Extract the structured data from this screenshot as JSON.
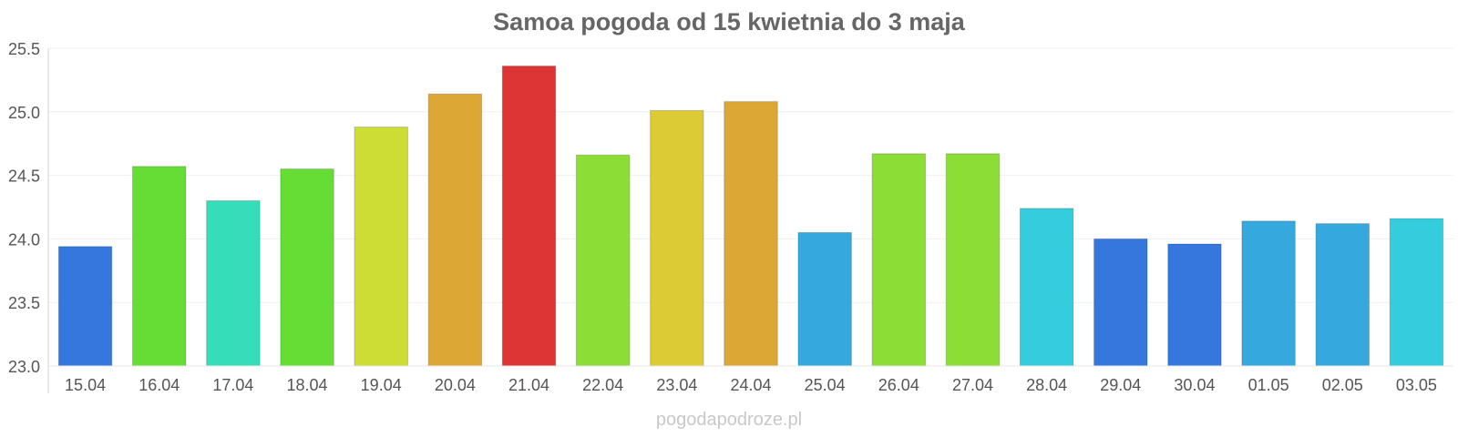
{
  "chart_data": {
    "type": "bar",
    "title": "Samoa pogoda od 15 kwietnia do 3 maja",
    "xlabel": "",
    "ylabel": "",
    "ylim": [
      23.0,
      25.5
    ],
    "yticks": [
      "23.0",
      "23.5",
      "24.0",
      "24.5",
      "25.0",
      "25.5"
    ],
    "grid": true,
    "legend": "none",
    "categories": [
      "15.04",
      "16.04",
      "17.04",
      "18.04",
      "19.04",
      "20.04",
      "21.04",
      "22.04",
      "23.04",
      "24.04",
      "25.04",
      "26.04",
      "27.04",
      "28.04",
      "29.04",
      "30.04",
      "01.05",
      "02.05",
      "03.05"
    ],
    "values": [
      23.94,
      24.57,
      24.3,
      24.55,
      24.88,
      25.14,
      25.36,
      24.66,
      25.01,
      25.08,
      24.05,
      24.67,
      24.67,
      24.24,
      24.0,
      23.96,
      24.14,
      24.12,
      24.16
    ],
    "colors": [
      "#3577dd",
      "#66dd35",
      "#35ddb8",
      "#66dd35",
      "#cedd35",
      "#dda735",
      "#dd3535",
      "#8cdd35",
      "#dccb35",
      "#dda735",
      "#35a8dd",
      "#8cdd35",
      "#8cdd35",
      "#35cddd",
      "#3577dd",
      "#3577dd",
      "#35a8dd",
      "#35a8dd",
      "#35cddd"
    ]
  },
  "watermark": "pogodapodroze.pl"
}
